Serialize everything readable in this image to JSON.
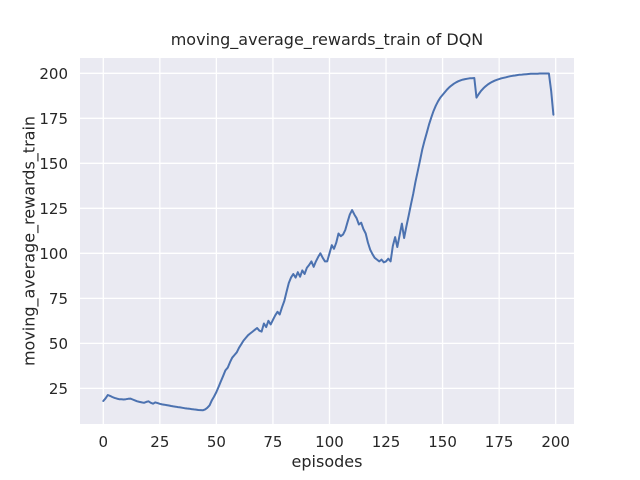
{
  "chart_data": {
    "type": "line",
    "title": "moving_average_rewards_train of DQN",
    "xlabel": "episodes",
    "ylabel": "moving_average_rewards_train",
    "x_ticks": [
      0,
      25,
      50,
      75,
      100,
      125,
      150,
      175,
      200
    ],
    "y_ticks": [
      25,
      50,
      75,
      100,
      125,
      150,
      175,
      200
    ],
    "xlim": [
      -10.3,
      208.1
    ],
    "ylim": [
      5.2,
      208.5
    ],
    "grid": true,
    "legend": "none",
    "style": {
      "line_color": "#4c72b0",
      "plot_bg": "#eaeaf2",
      "grid_color": "#ffffff",
      "text_color": "#262626",
      "line_width": 2
    },
    "series": [
      {
        "name": "moving_average_rewards_train",
        "x0": 0,
        "x_step": 1,
        "values": [
          18.0,
          19.5,
          21.3,
          20.8,
          20.2,
          19.7,
          19.3,
          19.0,
          18.9,
          18.8,
          19.0,
          19.2,
          19.3,
          18.8,
          18.3,
          17.8,
          17.5,
          17.2,
          17.0,
          17.5,
          17.8,
          17.0,
          16.5,
          17.2,
          16.8,
          16.4,
          16.1,
          15.9,
          15.7,
          15.5,
          15.2,
          15.0,
          14.8,
          14.6,
          14.4,
          14.2,
          14.0,
          13.8,
          13.7,
          13.5,
          13.3,
          13.2,
          13.0,
          12.9,
          12.8,
          13.3,
          14.2,
          15.6,
          18.4,
          20.5,
          23.0,
          26.0,
          29.0,
          32.0,
          35.0,
          36.5,
          39.5,
          42.0,
          43.5,
          45.0,
          47.5,
          49.5,
          51.5,
          53.0,
          54.5,
          55.5,
          56.5,
          57.5,
          58.5,
          57.0,
          56.5,
          61.0,
          59.0,
          62.5,
          60.5,
          63.0,
          65.5,
          67.5,
          66.0,
          70.0,
          73.5,
          78.5,
          83.5,
          86.5,
          88.5,
          86.5,
          89.5,
          87.0,
          90.5,
          88.5,
          92.0,
          93.5,
          95.5,
          92.5,
          95.5,
          98.0,
          100.0,
          97.5,
          95.5,
          95.5,
          100.0,
          104.5,
          102.5,
          106.0,
          111.0,
          109.5,
          110.5,
          113.0,
          117.5,
          121.5,
          124.0,
          121.5,
          119.5,
          116.0,
          117.0,
          113.5,
          111.0,
          106.0,
          102.0,
          99.5,
          97.5,
          96.5,
          95.5,
          96.5,
          95.0,
          95.5,
          97.0,
          95.5,
          104.0,
          109.0,
          103.5,
          110.0,
          116.5,
          108.5,
          115.0,
          121.0,
          127.0,
          133.0,
          139.5,
          145.5,
          151.5,
          157.5,
          162.5,
          167.0,
          171.5,
          175.5,
          179.0,
          182.0,
          184.5,
          186.5,
          188.0,
          189.5,
          191.0,
          192.3,
          193.3,
          194.2,
          195.0,
          195.6,
          196.1,
          196.5,
          196.8,
          197.0,
          197.2,
          197.3,
          197.4,
          186.5,
          188.5,
          190.2,
          191.6,
          192.8,
          193.8,
          194.6,
          195.3,
          195.9,
          196.4,
          196.8,
          197.2,
          197.5,
          197.8,
          198.1,
          198.4,
          198.6,
          198.8,
          199.0,
          199.2,
          199.3,
          199.4,
          199.5,
          199.6,
          199.7,
          199.7,
          199.8,
          199.8,
          199.9,
          199.9,
          199.9,
          199.9,
          199.9,
          190.0,
          177.0
        ]
      }
    ]
  }
}
